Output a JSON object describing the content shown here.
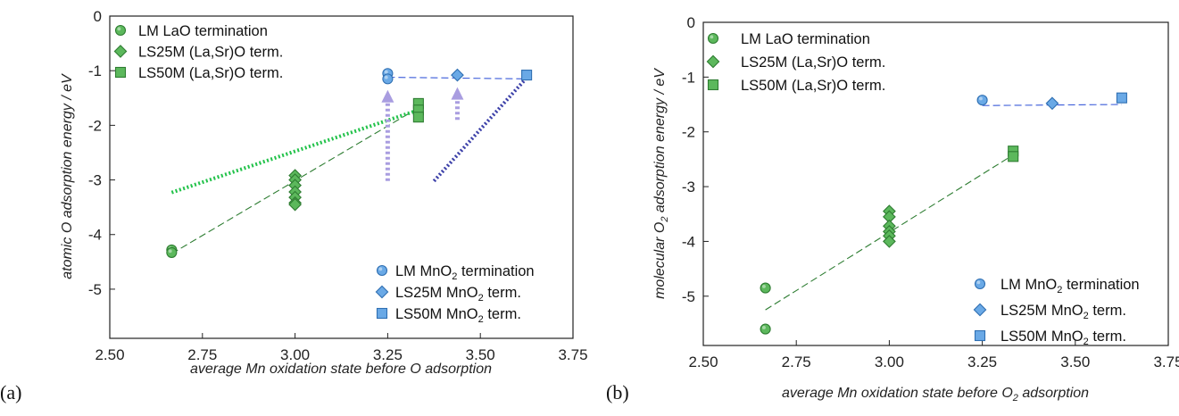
{
  "chart_data": [
    {
      "type": "scatter",
      "panel_label": "(a)",
      "xlabel": "average Mn oxidation state before O adsorption",
      "ylabel": "atomic O adsorption energy / eV",
      "xlim": [
        2.5,
        3.75
      ],
      "ylim": [
        -5.9,
        0
      ],
      "xticks": [
        "2.50",
        "2.75",
        "3.00",
        "3.25",
        "3.50",
        "3.75"
      ],
      "yticks": [
        "0",
        "-1",
        "-2",
        "-3",
        "-4",
        "-5"
      ],
      "grid": false,
      "legend_placement": [
        "top-left",
        "bottom-right"
      ],
      "series": [
        {
          "name": "LM LaO termination",
          "marker": "circle",
          "color": "#5cb85c",
          "points": [
            [
              2.667,
              -4.28
            ],
            [
              2.667,
              -4.33
            ]
          ]
        },
        {
          "name": "LS25M (La,Sr)O term.",
          "marker": "diamond",
          "color": "#5cb85c",
          "points": [
            [
              3.0,
              -2.92
            ],
            [
              3.0,
              -3.0
            ],
            [
              3.0,
              -3.1
            ],
            [
              3.0,
              -3.22
            ],
            [
              3.0,
              -3.32
            ],
            [
              3.0,
              -3.42
            ],
            [
              3.0,
              -3.45
            ]
          ]
        },
        {
          "name": "LS50M (La,Sr)O term.",
          "marker": "square",
          "color": "#5cb85c",
          "points": [
            [
              3.333,
              -1.6
            ],
            [
              3.333,
              -1.72
            ],
            [
              3.333,
              -1.85
            ]
          ]
        },
        {
          "name": "LM MnO2 termination",
          "marker": "circle",
          "color": "#6aa9e6",
          "points": [
            [
              3.25,
              -1.05
            ],
            [
              3.25,
              -1.15
            ]
          ]
        },
        {
          "name": "LS25M MnO2 term.",
          "marker": "diamond",
          "color": "#6aa9e6",
          "points": [
            [
              3.438,
              -1.08
            ]
          ]
        },
        {
          "name": "LS50M MnO2 term.",
          "marker": "square",
          "color": "#6aa9e6",
          "points": [
            [
              3.625,
              -1.08
            ]
          ]
        }
      ],
      "fit_lines": [
        {
          "style": "dashed",
          "color": "#2e7d32",
          "from": [
            2.667,
            -4.35
          ],
          "to": [
            3.333,
            -1.68
          ]
        },
        {
          "style": "dashed",
          "color": "#3a5bd9",
          "from": [
            3.25,
            -1.12
          ],
          "to": [
            3.625,
            -1.15
          ]
        },
        {
          "style": "dotted",
          "color": "#22c24a",
          "from": [
            2.667,
            -3.23
          ],
          "to": [
            3.333,
            -1.72
          ]
        },
        {
          "style": "dotted",
          "color": "#3b3fa8",
          "from": [
            3.375,
            -3.02
          ],
          "to": [
            3.625,
            -1.13
          ]
        }
      ],
      "arrows": [
        {
          "color": "#a99de0",
          "from": [
            3.25,
            -3.02
          ],
          "to": [
            3.25,
            -1.45
          ]
        },
        {
          "color": "#a99de0",
          "from": [
            3.438,
            -1.9
          ],
          "to": [
            3.438,
            -1.4
          ]
        }
      ],
      "legend_top": [
        "LM LaO termination",
        "LS25M (La,Sr)O term.",
        "LS50M (La,Sr)O term."
      ],
      "legend_bottom": [
        "LM MnO",
        "2",
        " termination",
        "LS25M MnO",
        "2",
        " term.",
        "LS50M MnO",
        "2",
        " term."
      ]
    },
    {
      "type": "scatter",
      "panel_label": "(b)",
      "xlabel_parts": [
        "average Mn oxidation state before O",
        "2",
        " adsorption"
      ],
      "ylabel_parts": [
        "molecular O",
        "2",
        " adsorption energy / eV"
      ],
      "xlim": [
        2.5,
        3.75
      ],
      "ylim": [
        -5.9,
        0
      ],
      "xticks": [
        "2.50",
        "2.75",
        "3.00",
        "3.25",
        "3.50",
        "3.75"
      ],
      "yticks": [
        "0",
        "-1",
        "-2",
        "-3",
        "-4",
        "-5"
      ],
      "grid": false,
      "legend_placement": [
        "top-left",
        "bottom-right"
      ],
      "series": [
        {
          "name": "LM LaO termination",
          "marker": "circle",
          "color": "#5cb85c",
          "points": [
            [
              2.667,
              -4.85
            ],
            [
              2.667,
              -5.6
            ]
          ]
        },
        {
          "name": "LS25M (La,Sr)O term.",
          "marker": "diamond",
          "color": "#5cb85c",
          "points": [
            [
              3.0,
              -3.45
            ],
            [
              3.0,
              -3.55
            ],
            [
              3.0,
              -3.72
            ],
            [
              3.0,
              -3.82
            ],
            [
              3.0,
              -3.9
            ],
            [
              3.0,
              -4.0
            ]
          ]
        },
        {
          "name": "LS50M (La,Sr)O term.",
          "marker": "square",
          "color": "#5cb85c",
          "points": [
            [
              3.333,
              -2.35
            ],
            [
              3.333,
              -2.45
            ]
          ]
        },
        {
          "name": "LM MnO2 termination",
          "marker": "circle",
          "color": "#6aa9e6",
          "points": [
            [
              3.25,
              -1.42
            ]
          ]
        },
        {
          "name": "LS25M MnO2 term.",
          "marker": "diamond",
          "color": "#6aa9e6",
          "points": [
            [
              3.438,
              -1.48
            ]
          ]
        },
        {
          "name": "LS50M MnO2 term.",
          "marker": "square",
          "color": "#6aa9e6",
          "points": [
            [
              3.625,
              -1.38
            ]
          ]
        }
      ],
      "fit_lines": [
        {
          "style": "dashed",
          "color": "#2e7d32",
          "from": [
            2.667,
            -5.25
          ],
          "to": [
            3.333,
            -2.42
          ]
        },
        {
          "style": "dashed",
          "color": "#3a5bd9",
          "from": [
            3.25,
            -1.52
          ],
          "to": [
            3.625,
            -1.5
          ]
        }
      ],
      "arrows": [],
      "legend_top": [
        "LM LaO termination",
        "LS25M (La,Sr)O term.",
        "LS50M (La,Sr)O term."
      ],
      "legend_bottom": [
        "LM MnO",
        "2",
        " termination",
        "LS25M MnO",
        "2",
        " term.",
        "LS50M MnO",
        "2",
        " term."
      ]
    }
  ]
}
